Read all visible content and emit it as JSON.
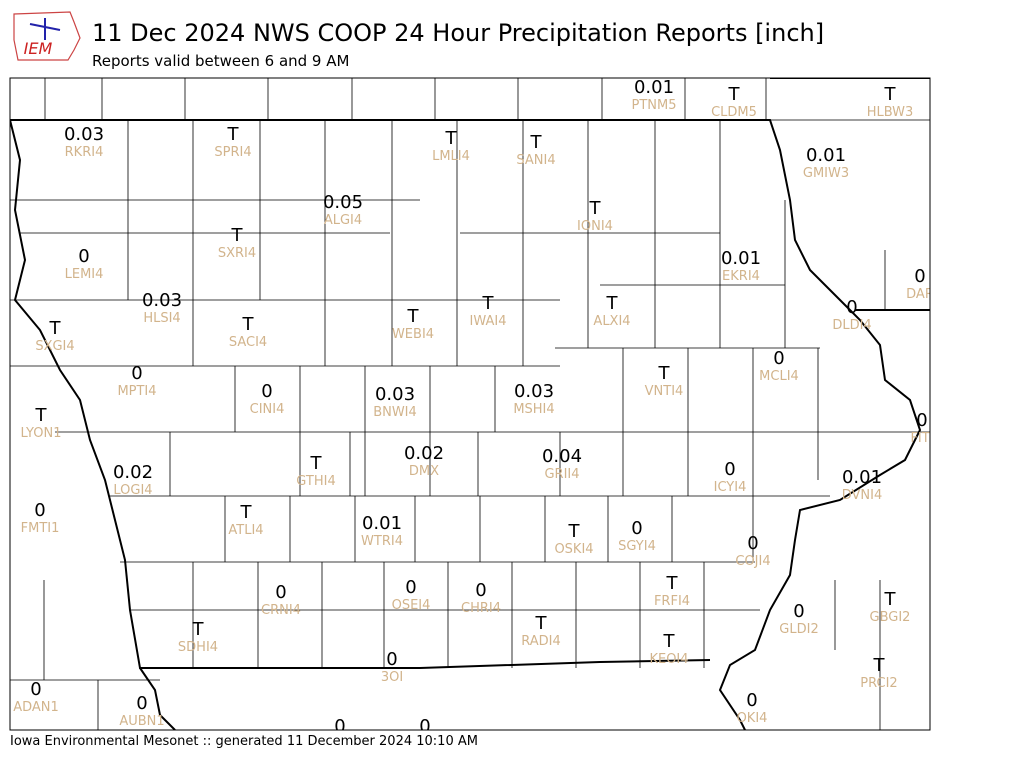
{
  "header": {
    "logo": "IEM",
    "title": "11 Dec 2024 NWS COOP 24 Hour Precipitation Reports [inch]",
    "subtitle": "Reports valid between 6 and 9 AM"
  },
  "stations": [
    {
      "value": "0.01",
      "id": "PTNM5"
    },
    {
      "value": "T",
      "id": "CLDM5"
    },
    {
      "value": "T",
      "id": "HLBW3"
    },
    {
      "value": "0.03",
      "id": "RKRI4"
    },
    {
      "value": "T",
      "id": "SPRI4"
    },
    {
      "value": "T",
      "id": "LMLI4"
    },
    {
      "value": "T",
      "id": "SANI4"
    },
    {
      "value": "0.01",
      "id": "GMIW3"
    },
    {
      "value": "0.05",
      "id": "ALGI4"
    },
    {
      "value": "T",
      "id": "IONI4"
    },
    {
      "value": "T",
      "id": "SXRI4"
    },
    {
      "value": "0",
      "id": "LEMI4"
    },
    {
      "value": "0.01",
      "id": "EKRI4"
    },
    {
      "value": "0",
      "id": "DAR"
    },
    {
      "value": "0.03",
      "id": "HLSI4"
    },
    {
      "value": "0",
      "id": "DLDI4"
    },
    {
      "value": "T",
      "id": "SXGI4"
    },
    {
      "value": "T",
      "id": "SACI4"
    },
    {
      "value": "T",
      "id": "WEBI4"
    },
    {
      "value": "T",
      "id": "IWAI4"
    },
    {
      "value": "T",
      "id": "ALXI4"
    },
    {
      "value": "0",
      "id": "MCLI4"
    },
    {
      "value": "T",
      "id": "VNTI4"
    },
    {
      "value": "0",
      "id": "MPTI4"
    },
    {
      "value": "0",
      "id": "CINI4"
    },
    {
      "value": "0.03",
      "id": "BNWI4"
    },
    {
      "value": "0.03",
      "id": "MSHI4"
    },
    {
      "value": "T",
      "id": "LYON1"
    },
    {
      "value": "0",
      "id": "FITI"
    },
    {
      "value": "0.02",
      "id": "DMX"
    },
    {
      "value": "0.04",
      "id": "GRII4"
    },
    {
      "value": "T",
      "id": "GTHI4"
    },
    {
      "value": "0.02",
      "id": "LOGI4"
    },
    {
      "value": "0",
      "id": "ICYI4"
    },
    {
      "value": "0.01",
      "id": "DVNI4"
    },
    {
      "value": "0",
      "id": "FMTI1"
    },
    {
      "value": "T",
      "id": "ATLI4"
    },
    {
      "value": "0.01",
      "id": "WTRI4"
    },
    {
      "value": "T",
      "id": "OSKI4"
    },
    {
      "value": "0",
      "id": "SGYI4"
    },
    {
      "value": "0",
      "id": "COJI4"
    },
    {
      "value": "0",
      "id": "CRNI4"
    },
    {
      "value": "0",
      "id": "OSEI4"
    },
    {
      "value": "0",
      "id": "CHRI4"
    },
    {
      "value": "T",
      "id": "FRFI4"
    },
    {
      "value": "T",
      "id": "GBGI2"
    },
    {
      "value": "0",
      "id": "GLDI2"
    },
    {
      "value": "T",
      "id": "RADI4"
    },
    {
      "value": "T",
      "id": "SDHI4"
    },
    {
      "value": "T",
      "id": "KEOI4"
    },
    {
      "value": "0",
      "id": "3OI"
    },
    {
      "value": "T",
      "id": "PRCI2"
    },
    {
      "value": "0",
      "id": "ADAN1"
    },
    {
      "value": "0",
      "id": "AUBN1"
    },
    {
      "value": "0",
      "id": "OKI4"
    },
    {
      "value": "0"
    },
    {
      "value": "0"
    }
  ],
  "footer": "Iowa Environmental Mesonet :: generated 11 December 2024 10:10 AM"
}
